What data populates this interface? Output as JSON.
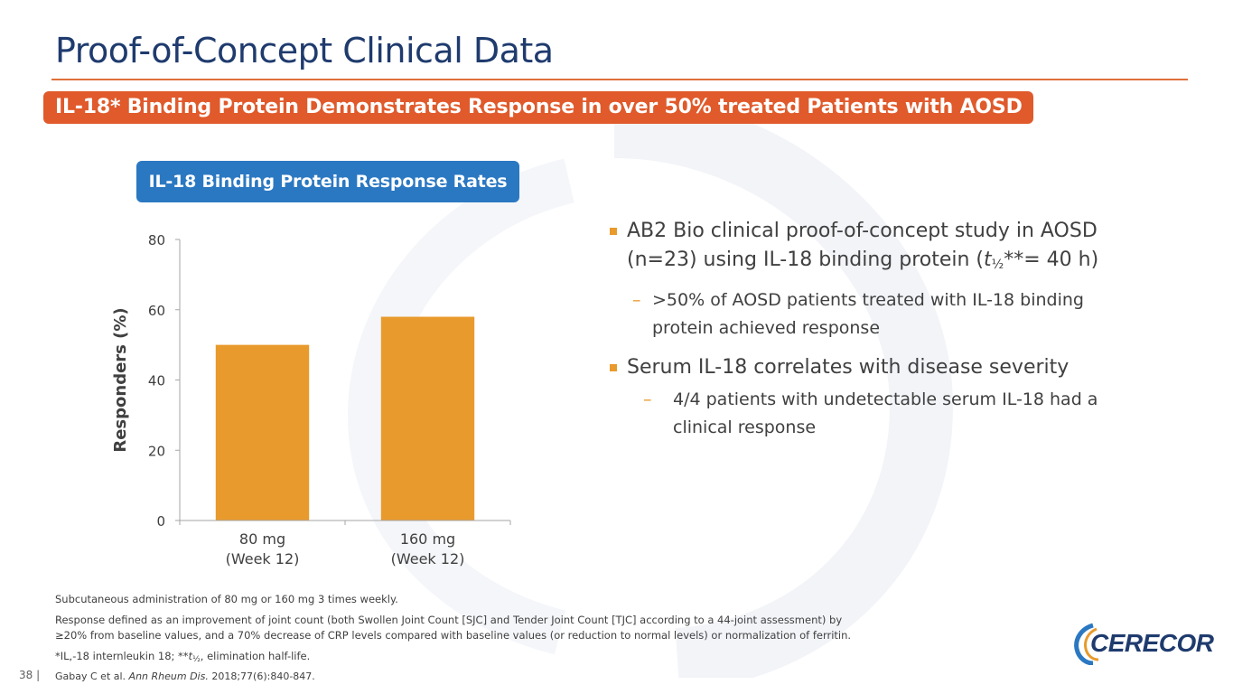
{
  "slide": {
    "title": "Proof-of-Concept Clinical Data",
    "banner": "IL-18* Binding Protein Demonstrates Response in over 50% treated Patients with AOSD",
    "chart_header": "IL-18 Binding Protein Response Rates",
    "page_number": "38 |"
  },
  "bullets": {
    "b1_part1": "AB2 Bio clinical proof-of-concept study in AOSD (n=23) using IL-18 binding protein (",
    "b1_t": "t",
    "b1_sub": "½",
    "b1_part2": "**= 40 h)",
    "b1_sub1": ">50% of AOSD patients treated with IL-18 binding protein achieved response",
    "b2": "Serum IL-18 correlates with disease severity",
    "b2_sub1": "4/4 patients with undetectable serum IL-18 had a clinical response",
    "dash": "–"
  },
  "footnotes": {
    "f1": "Subcutaneous administration of 80 mg or 160 mg 3 times weekly.",
    "f2a": "Response defined as an improvement of joint count (both Swollen Joint Count [SJC] and Tender Joint Count [TJC] according to a 44-joint assessment) by",
    "f2b": "≥20% from baseline values, and a 70% decrease of CRP levels compared with baseline values (or reduction to normal levels) or normalization of ferritin.",
    "f3a": "*IL,-18 internleukin 18; **",
    "f3t": "t",
    "f3sub": "½",
    "f3b": ", elimination half-life.",
    "f4a": "Gabay C et al. ",
    "f4journal": "Ann Rheum Dis.",
    "f4b": " 2018;77(6):840-847."
  },
  "logo": {
    "text": "CERECOR"
  },
  "colors": {
    "title": "#1f3b6e",
    "banner": "#e05a2b",
    "chart_header": "#2b78c2",
    "bar": "#e89a2c",
    "rule": "#e0703a"
  },
  "chart_data": {
    "type": "bar",
    "title": "IL-18 Binding Protein Response Rates",
    "categories": [
      [
        "80 mg",
        "(Week 12)"
      ],
      [
        "160 mg",
        "(Week 12)"
      ]
    ],
    "values": [
      50,
      58
    ],
    "ylabel": "Responders (%)",
    "xlabel": "",
    "ylim": [
      0,
      80
    ],
    "yticks": [
      0,
      20,
      40,
      60,
      80
    ],
    "grid": false,
    "legend": "none"
  }
}
